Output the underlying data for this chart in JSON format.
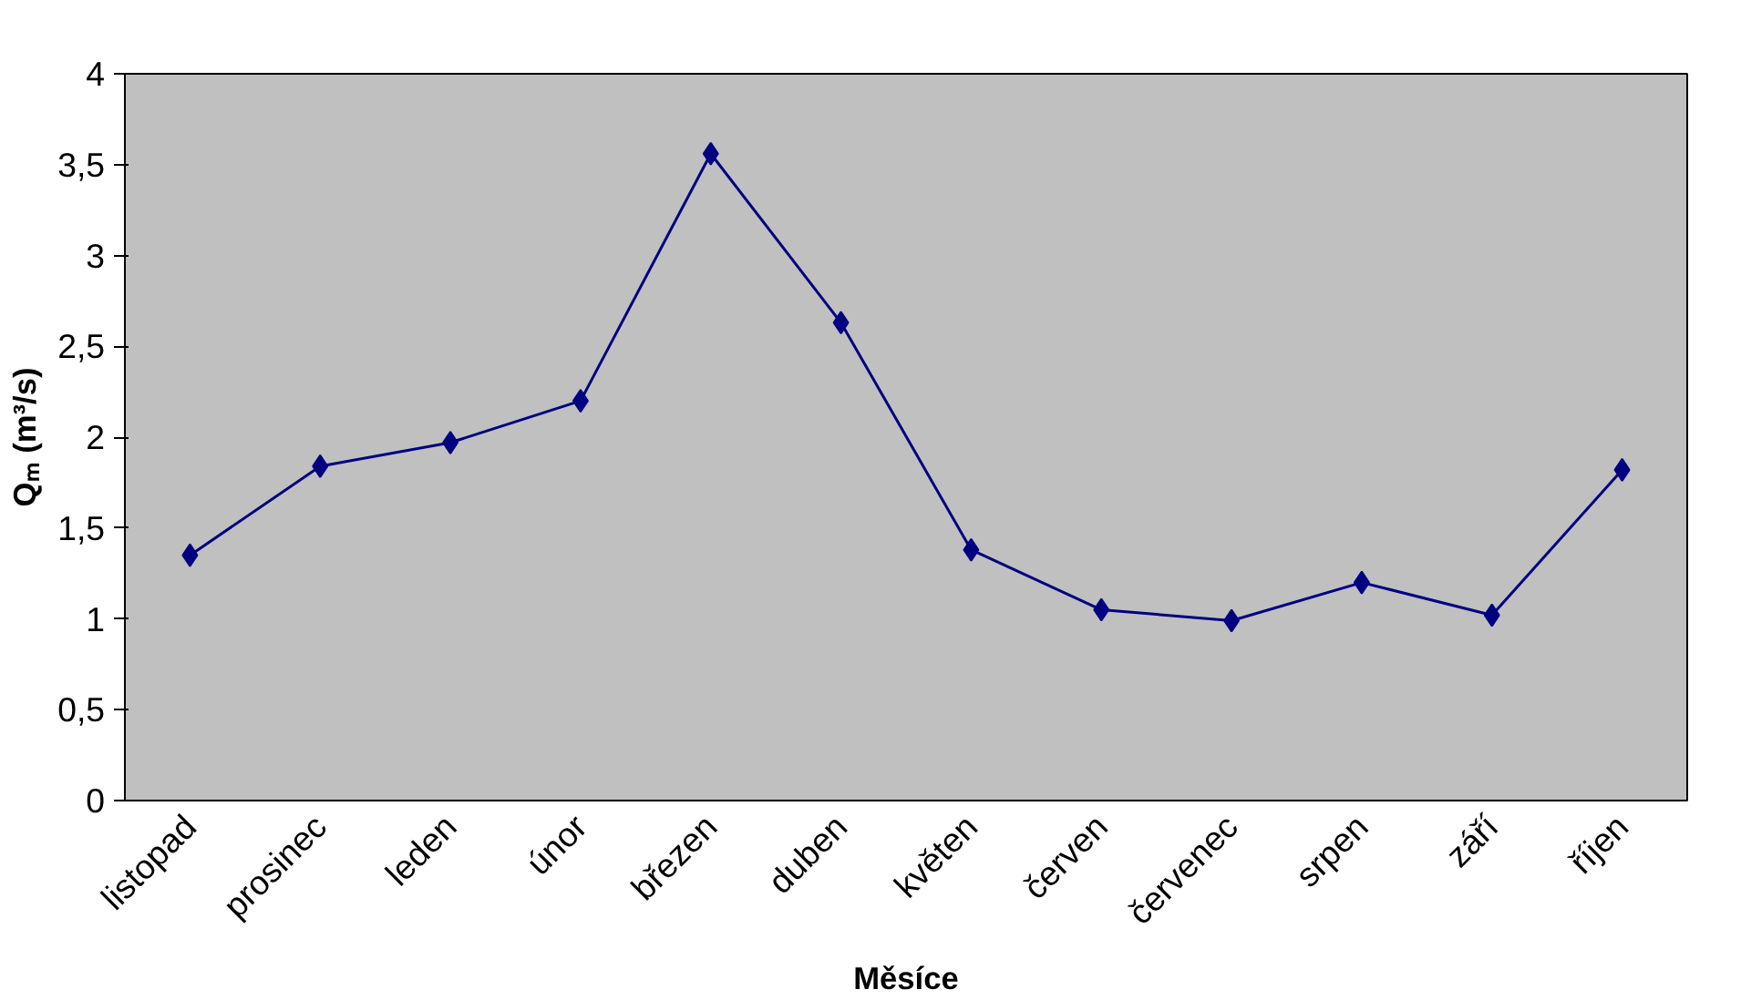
{
  "chart_data": {
    "type": "line",
    "xlabel": "Měsíce",
    "ylabel": "Qₘ (m³/s)",
    "categories": [
      "listopad",
      "prosinec",
      "leden",
      "únor",
      "březen",
      "duben",
      "květen",
      "červen",
      "červenec",
      "srpen",
      "září",
      "říjen"
    ],
    "series": [
      {
        "color": "#000080",
        "values": [
          1.35,
          1.84,
          1.97,
          2.2,
          3.56,
          2.63,
          1.38,
          1.05,
          0.99,
          1.2,
          1.02,
          1.82
        ]
      }
    ],
    "ylim": [
      0,
      4
    ],
    "yticks": [
      0,
      {
        "value": 0.5,
        "label": "0,5"
      },
      1,
      {
        "value": 1.5,
        "label": "1,5"
      },
      2,
      {
        "value": 2.5,
        "label": "2,5"
      },
      3,
      {
        "value": 3.5,
        "label": "3,5"
      },
      4
    ],
    "grid": false,
    "marker": "diamond",
    "line_style": "solid"
  }
}
